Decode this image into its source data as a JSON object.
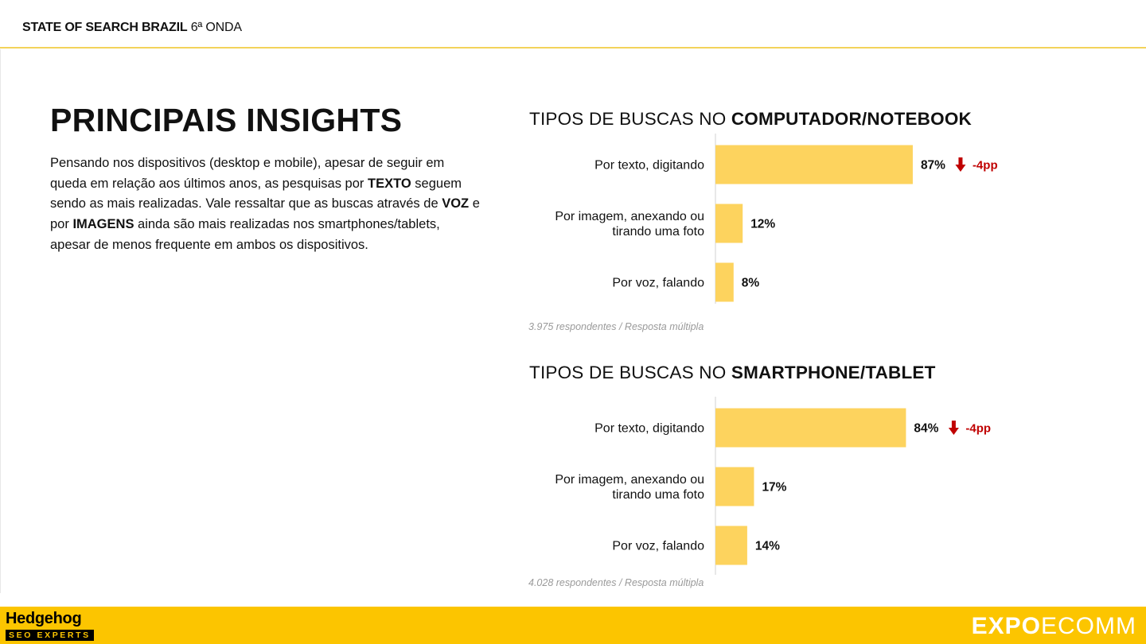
{
  "header": {
    "title_bold": "STATE OF SEARCH BRAZIL",
    "title_rest": "6ª ONDA"
  },
  "main_title": "PRINCIPAIS INSIGHTS",
  "paragraph": {
    "p1": "Pensando nos dispositivos (desktop e mobile), apesar de seguir em queda em relação aos últimos anos, as pesquisas por ",
    "b1": "TEXTO",
    "p2": " seguem sendo as mais realizadas. Vale ressaltar que as buscas através de ",
    "b2": "VOZ",
    "p3": " e por ",
    "b3": "IMAGENS",
    "p4": " ainda são mais realizadas nos smartphones/tablets, apesar de menos frequente em ambos os dispositivos."
  },
  "charts": {
    "computer": {
      "title_prefix": "TIPOS DE BUSCAS NO ",
      "title_bold": "COMPUTADOR/NOTEBOOK",
      "note": "3.975 respondentes / Resposta múltipla"
    },
    "smartphone": {
      "title_prefix": "TIPOS DE BUSCAS NO ",
      "title_bold": "SMARTPHONE/TABLET",
      "note": "4.028 respondentes / Resposta múltipla"
    }
  },
  "colors": {
    "bar": "#fdd35e",
    "axis": "#d9d9d9",
    "change": "#c00000",
    "footer": "#fcc500",
    "header_rule": "#f3d35a"
  },
  "chart_data": [
    {
      "type": "bar",
      "orientation": "horizontal",
      "title": "TIPOS DE BUSCAS NO COMPUTADOR/NOTEBOOK",
      "categories": [
        [
          "Por texto, digitando"
        ],
        [
          "Por imagem, anexando ou",
          "tirando uma foto"
        ],
        [
          "Por voz, falando"
        ]
      ],
      "values": [
        87,
        12,
        8
      ],
      "value_labels": [
        "87%",
        "12%",
        "8%"
      ],
      "changes": [
        "-4pp",
        null,
        null
      ],
      "unit": "%",
      "xlim": [
        0,
        100
      ],
      "grid": false,
      "legend": "none"
    },
    {
      "type": "bar",
      "orientation": "horizontal",
      "title": "TIPOS DE BUSCAS NO SMARTPHONE/TABLET",
      "categories": [
        [
          "Por texto, digitando"
        ],
        [
          "Por imagem, anexando ou",
          "tirando uma foto"
        ],
        [
          "Por voz, falando"
        ]
      ],
      "values": [
        84,
        17,
        14
      ],
      "value_labels": [
        "84%",
        "17%",
        "14%"
      ],
      "changes": [
        "-4pp",
        null,
        null
      ],
      "unit": "%",
      "xlim": [
        0,
        100
      ],
      "grid": false,
      "legend": "none"
    }
  ],
  "footer": {
    "logo_left_top": "Hedgehog",
    "logo_left_bottom": "SEO EXPERTS",
    "logo_right_bold": "EXPO",
    "logo_right_rest": "ECOMM"
  }
}
